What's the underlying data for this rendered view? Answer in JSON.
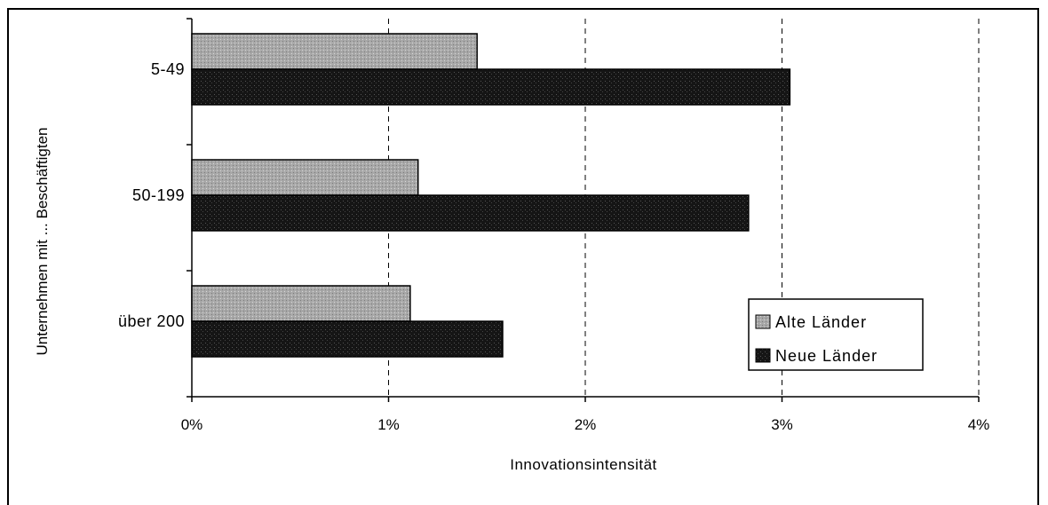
{
  "chart_data": {
    "type": "bar",
    "orientation": "horizontal",
    "categories": [
      "5-49",
      "50-199",
      "über 200"
    ],
    "series": [
      {
        "name": "Alte Länder",
        "values": [
          1.45,
          1.15,
          1.11
        ],
        "color": "#b0b0b0"
      },
      {
        "name": "Neue Länder",
        "values": [
          3.04,
          2.83,
          1.58
        ],
        "color": "#222222"
      }
    ],
    "x_ticks": [
      "0%",
      "1%",
      "2%",
      "3%",
      "4%"
    ],
    "xlim": [
      0,
      4
    ],
    "xlabel": "Innovationsintensität",
    "ylabel": "Unternehmen mit ... Beschäftigten",
    "grid": "vertical dashed",
    "legend_position": "bottom-right"
  }
}
